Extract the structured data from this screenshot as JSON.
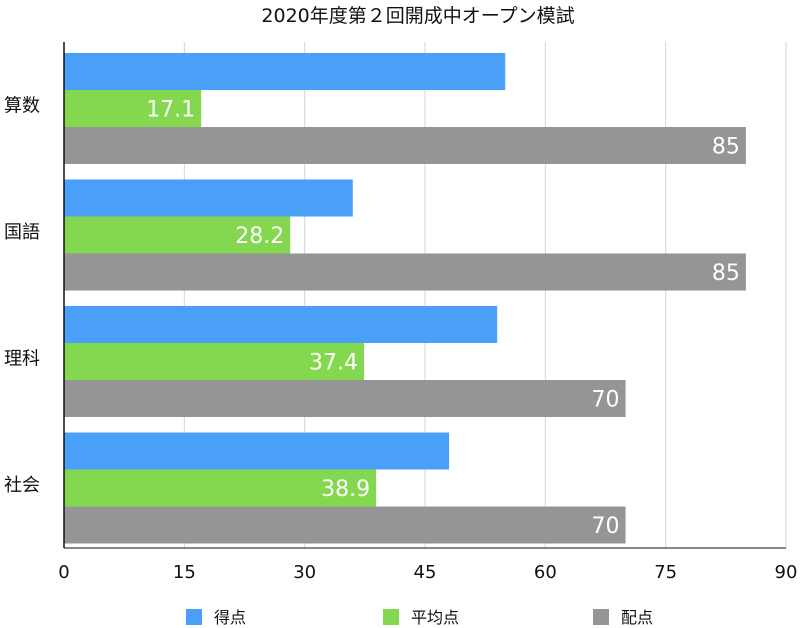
{
  "chart_data": {
    "type": "bar",
    "orientation": "horizontal",
    "title": "2020年度第２回開成中オープン模試",
    "categories": [
      "算数",
      "国語",
      "理科",
      "社会"
    ],
    "series": [
      {
        "name": "得点",
        "color": "#4aa0f8",
        "values": [
          55,
          36,
          54,
          48
        ],
        "labels": [
          "",
          "",
          "",
          ""
        ]
      },
      {
        "name": "平均点",
        "color": "#84d850",
        "values": [
          17.1,
          28.2,
          37.4,
          38.9
        ],
        "labels": [
          "17.1",
          "28.2",
          "37.4",
          "38.9"
        ]
      },
      {
        "name": "配点",
        "color": "#959595",
        "values": [
          85,
          85,
          70,
          70
        ],
        "labels": [
          "85",
          "85",
          "70",
          "70"
        ]
      }
    ],
    "xlim": [
      0,
      90
    ],
    "xticks": [
      "0",
      "15",
      "30",
      "45",
      "60",
      "75",
      "90"
    ],
    "grid": true,
    "legend_position": "bottom"
  }
}
